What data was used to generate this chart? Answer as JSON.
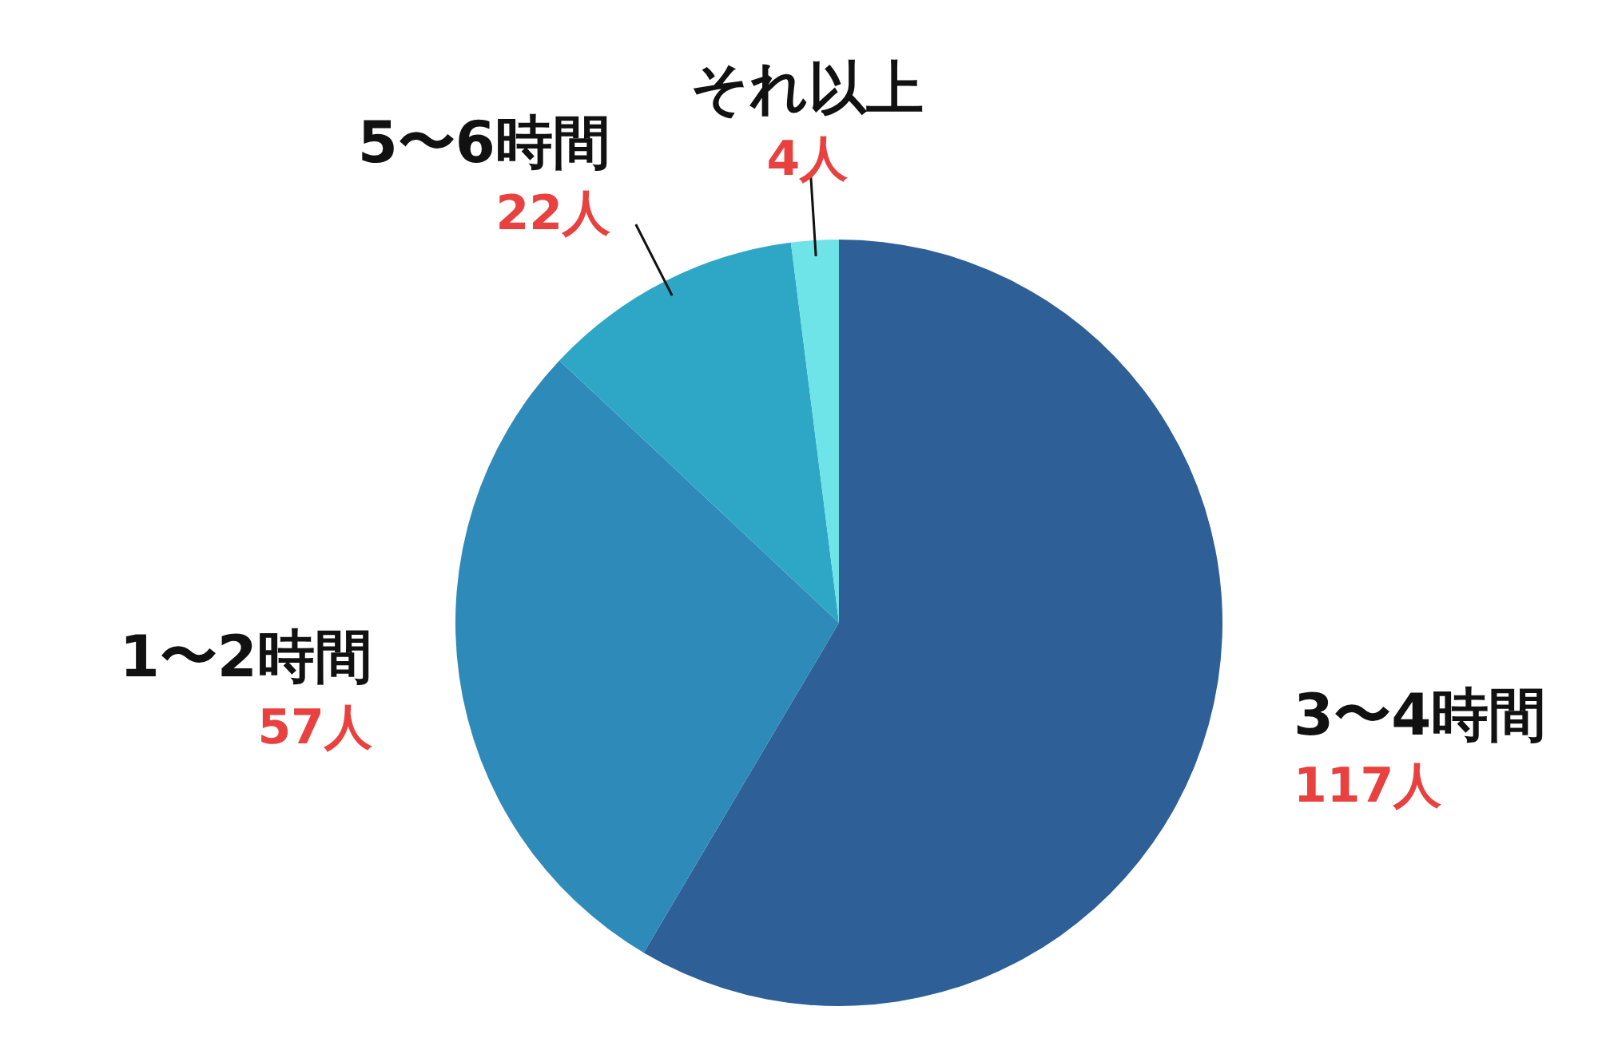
{
  "chart_data": {
    "type": "pie",
    "categories": [
      "3〜4時間",
      "1〜2時間",
      "5〜6時間",
      "それ以上"
    ],
    "values": [
      117,
      57,
      22,
      4
    ],
    "value_labels": [
      "117人",
      "57人",
      "22人",
      "4人"
    ],
    "colors": [
      "#2e5f96",
      "#2e8ab9",
      "#2ea7c6",
      "#6ee3e8"
    ],
    "legend": false
  }
}
